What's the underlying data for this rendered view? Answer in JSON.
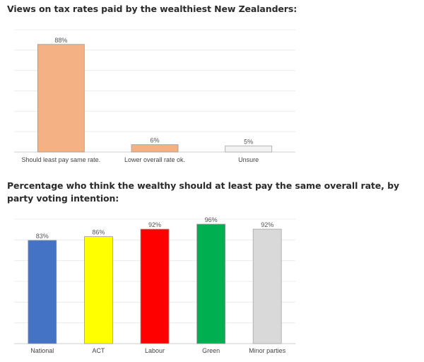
{
  "titles": {
    "chart1": "Views on tax rates paid by the wealthiest New Zealanders:",
    "chart2": "Percentage who think the wealthy should at least pay the same overall rate, by party voting intention:"
  },
  "chart_data": [
    {
      "type": "bar",
      "title": "Views on tax rates paid by the wealthiest New Zealanders:",
      "categories": [
        "Should least pay same rate.",
        "Lower overall rate ok.",
        "Unsure"
      ],
      "values": [
        88,
        6,
        5
      ],
      "value_labels": [
        "88%",
        "6%",
        "5%"
      ],
      "colors": [
        "#f4b183",
        "#f4b183",
        "#f2f2f2"
      ],
      "ylim": [
        0,
        100
      ],
      "grid": true,
      "legend": "none"
    },
    {
      "type": "bar",
      "title": "Percentage who think the wealthy should at least pay the same overall rate, by party voting intention:",
      "categories": [
        "National",
        "ACT",
        "Labour",
        "Green",
        "Minor parties"
      ],
      "values": [
        83,
        86,
        92,
        96,
        92
      ],
      "value_labels": [
        "83%",
        "86%",
        "92%",
        "96%",
        "92%"
      ],
      "colors": [
        "#4472c4",
        "#ffff00",
        "#ff0000",
        "#00b050",
        "#d9d9d9"
      ],
      "ylim": [
        0,
        100
      ],
      "grid": true,
      "legend": "none"
    }
  ]
}
